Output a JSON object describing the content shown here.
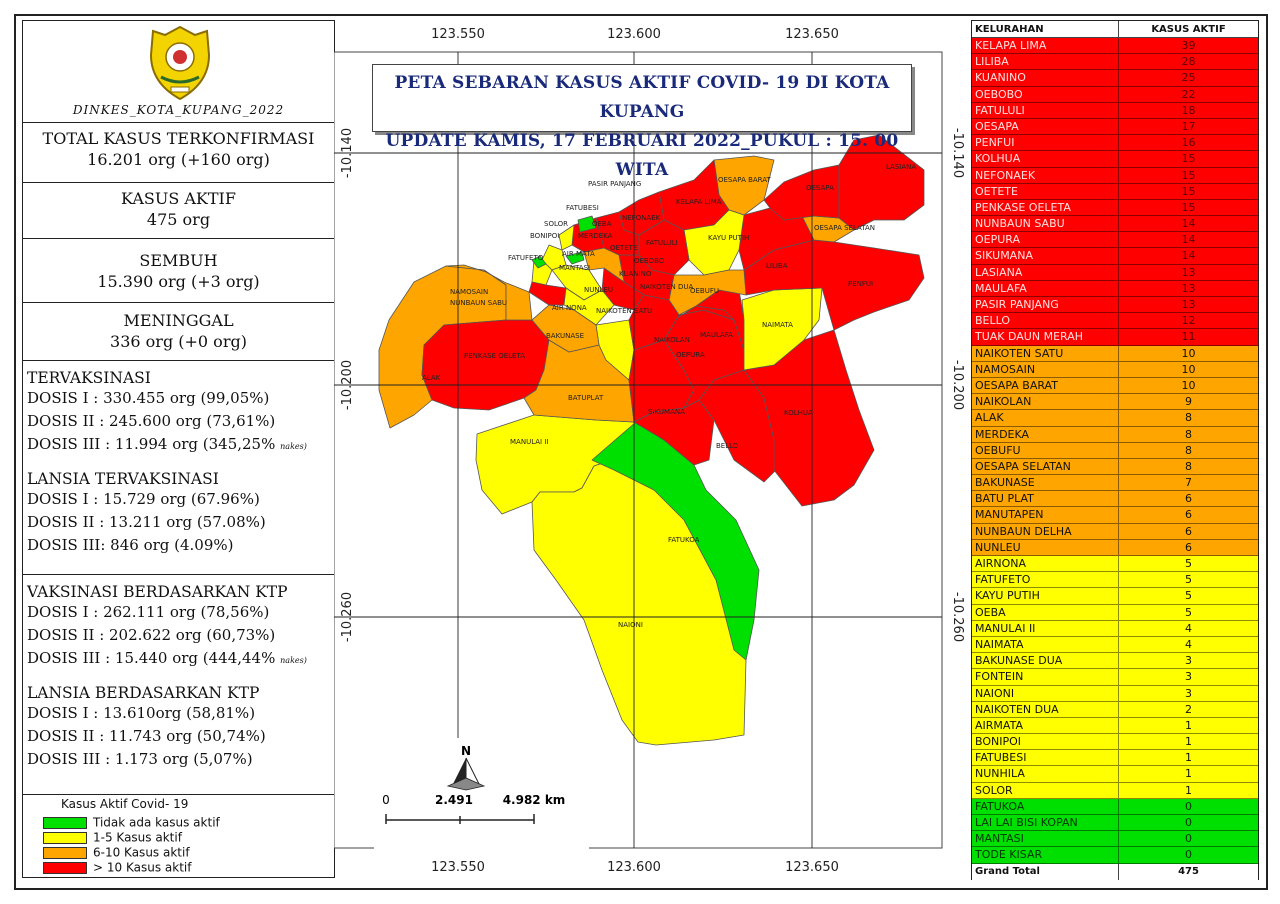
{
  "agency": "DINKES_KOTA_KUPANG_2022",
  "stats": {
    "total": {
      "title": "TOTAL KASUS TERKONFIRMASI",
      "value": "16.201 org (+160 org)"
    },
    "aktif": {
      "title": "KASUS AKTIF",
      "value": "475 org"
    },
    "sembuh": {
      "title": "SEMBUH",
      "value": "15.390 org (+3 org)"
    },
    "meninggal": {
      "title": "MENINGGAL",
      "value": "336 org (+0 org)"
    }
  },
  "tervaksinasi": {
    "title": "TERVAKSINASI",
    "dosis1": "DOSIS I   : 330.455 org (99,05%)",
    "dosis2": "DOSIS II  : 245.600 org (73,61%)",
    "dosis3": "DOSIS III : 11.994 org (345,25%",
    "dosis3_note": "nakes)"
  },
  "lansia": {
    "title": "LANSIA TERVAKSINASI",
    "dosis1": "DOSIS I  : 15.729 org (67.96%)",
    "dosis2": "DOSIS II : 13.211 org (57.08%)",
    "dosis3": "DOSIS III:  846 org  (4.09%)"
  },
  "ktp": {
    "title": "VAKSINASI BERDASARKAN KTP",
    "dosis1": "DOSIS I     : 262.111 org (78,56%)",
    "dosis2": "DOSIS II   : 202.622 org (60,73%)",
    "dosis3": "DOSIS III : 15.440 org (444,44%",
    "dosis3_note": "nakes)"
  },
  "lansia_ktp": {
    "title": "LANSIA BERDASARKAN KTP",
    "dosis1": "DOSIS I     : 13.610org (58,81%)",
    "dosis2": "DOSIS II    : 11.743 org (50,74%)",
    "dosis3": "DOSIS III  : 1.173 org (5,07%)"
  },
  "legend": {
    "title": "Kasus Aktif Covid- 19",
    "items": [
      {
        "label": "Tidak ada kasus aktif",
        "color": "#00e000"
      },
      {
        "label": "1-5 Kasus aktif",
        "color": "#ffff00"
      },
      {
        "label": "6-10 Kasus aktif",
        "color": "#ffa500"
      },
      {
        "label": "> 10 Kasus aktif",
        "color": "#ff0000"
      }
    ]
  },
  "map": {
    "title_line1": "PETA SEBARAN KASUS AKTIF COVID- 19 DI KOTA KUPANG",
    "title_line2": "UPDATE KAMIS, 17 FEBRUARI 2022_PUKUL : 15. 00 WITA",
    "lon_labels": [
      "123.550",
      "123.600",
      "123.650"
    ],
    "lat_labels": [
      "-10.140",
      "-10.200",
      "-10.260"
    ],
    "north": "N",
    "scale": [
      "0",
      "2.491",
      "4.982 km"
    ],
    "place_labels": [
      "LASIANA",
      "OESAPA",
      "OESAPA BARAT",
      "OESAPA SELATAN",
      "PENFUI",
      "LILIBA",
      "KAYU PUTIH",
      "KELAPA LIMA",
      "NEFONAEK",
      "PASIR PANJANG",
      "FATUBESI",
      "OEBA",
      "SOLOR",
      "BONIPOI",
      "MERDEKA",
      "OETETE",
      "FATULULI",
      "AIR MATA",
      "FATUFETO",
      "MANTASI",
      "OEBOBO",
      "KUANINO",
      "NUNLEU",
      "NAIKOTEN DUA",
      "OEBUFU",
      "AIR NONA",
      "NAIKOTEN SATU",
      "NAMOSAIN",
      "NUNBAUN SABU",
      "BAKUNASE",
      "NAIKOLAN",
      "MAULAFA",
      "NAIMATA",
      "OEPURA",
      "PENKASE OELETA",
      "ALAK",
      "BATUPLAT",
      "SIKUMANA",
      "KOLHUA",
      "BELLO",
      "MANULAI II",
      "FATUKOA",
      "NAIONI"
    ]
  },
  "table": {
    "header_k": "KELURAHAN",
    "header_v": "KASUS AKTIF",
    "rows": [
      {
        "name": "KELAPA LIMA",
        "value": "39",
        "cls": "c-red"
      },
      {
        "name": "LILIBA",
        "value": "28",
        "cls": "c-red"
      },
      {
        "name": "KUANINO",
        "value": "25",
        "cls": "c-red"
      },
      {
        "name": "OEBOBO",
        "value": "22",
        "cls": "c-red"
      },
      {
        "name": "FATULULI",
        "value": "18",
        "cls": "c-red"
      },
      {
        "name": "OESAPA",
        "value": "17",
        "cls": "c-red"
      },
      {
        "name": "PENFUI",
        "value": "16",
        "cls": "c-red"
      },
      {
        "name": "KOLHUA",
        "value": "15",
        "cls": "c-red"
      },
      {
        "name": "NEFONAEK",
        "value": "15",
        "cls": "c-red"
      },
      {
        "name": "OETETE",
        "value": "15",
        "cls": "c-red"
      },
      {
        "name": "PENKASE OELETA",
        "value": "15",
        "cls": "c-red"
      },
      {
        "name": "NUNBAUN SABU",
        "value": "14",
        "cls": "c-red"
      },
      {
        "name": "OEPURA",
        "value": "14",
        "cls": "c-red"
      },
      {
        "name": "SIKUMANA",
        "value": "14",
        "cls": "c-red"
      },
      {
        "name": "LASIANA",
        "value": "13",
        "cls": "c-red"
      },
      {
        "name": "MAULAFA",
        "value": "13",
        "cls": "c-red"
      },
      {
        "name": "PASIR PANJANG",
        "value": "13",
        "cls": "c-red"
      },
      {
        "name": "BELLO",
        "value": "12",
        "cls": "c-red"
      },
      {
        "name": "TUAK DAUN MERAH",
        "value": "11",
        "cls": "c-red"
      },
      {
        "name": "NAIKOTEN SATU",
        "value": "10",
        "cls": "c-orange"
      },
      {
        "name": "NAMOSAIN",
        "value": "10",
        "cls": "c-orange"
      },
      {
        "name": "OESAPA BARAT",
        "value": "10",
        "cls": "c-orange"
      },
      {
        "name": "NAIKOLAN",
        "value": "9",
        "cls": "c-orange"
      },
      {
        "name": "ALAK",
        "value": "8",
        "cls": "c-orange"
      },
      {
        "name": "MERDEKA",
        "value": "8",
        "cls": "c-orange"
      },
      {
        "name": "OEBUFU",
        "value": "8",
        "cls": "c-orange"
      },
      {
        "name": "OESAPA SELATAN",
        "value": "8",
        "cls": "c-orange"
      },
      {
        "name": "BAKUNASE",
        "value": "7",
        "cls": "c-orange"
      },
      {
        "name": "BATU PLAT",
        "value": "6",
        "cls": "c-orange"
      },
      {
        "name": "MANUTAPEN",
        "value": "6",
        "cls": "c-orange"
      },
      {
        "name": "NUNBAUN DELHA",
        "value": "6",
        "cls": "c-orange"
      },
      {
        "name": "NUNLEU",
        "value": "6",
        "cls": "c-orange"
      },
      {
        "name": "AIRNONA",
        "value": "5",
        "cls": "c-yellow"
      },
      {
        "name": "FATUFETO",
        "value": "5",
        "cls": "c-yellow"
      },
      {
        "name": "KAYU PUTIH",
        "value": "5",
        "cls": "c-yellow"
      },
      {
        "name": "OEBA",
        "value": "5",
        "cls": "c-yellow"
      },
      {
        "name": "MANULAI II",
        "value": "4",
        "cls": "c-yellow"
      },
      {
        "name": "NAIMATA",
        "value": "4",
        "cls": "c-yellow"
      },
      {
        "name": "BAKUNASE DUA",
        "value": "3",
        "cls": "c-yellow"
      },
      {
        "name": "FONTEIN",
        "value": "3",
        "cls": "c-yellow"
      },
      {
        "name": "NAIONI",
        "value": "3",
        "cls": "c-yellow"
      },
      {
        "name": "NAIKOTEN DUA",
        "value": "2",
        "cls": "c-yellow"
      },
      {
        "name": "AIRMATA",
        "value": "1",
        "cls": "c-yellow"
      },
      {
        "name": "BONIPOI",
        "value": "1",
        "cls": "c-yellow"
      },
      {
        "name": "FATUBESI",
        "value": "1",
        "cls": "c-yellow"
      },
      {
        "name": "NUNHILA",
        "value": "1",
        "cls": "c-yellow"
      },
      {
        "name": "SOLOR",
        "value": "1",
        "cls": "c-yellow"
      },
      {
        "name": "FATUKOA",
        "value": "0",
        "cls": "c-green"
      },
      {
        "name": "LAI LAI BISI KOPAN",
        "value": "0",
        "cls": "c-green"
      },
      {
        "name": "MANTASI",
        "value": "0",
        "cls": "c-green"
      },
      {
        "name": "TODE KISAR",
        "value": "0",
        "cls": "c-green"
      }
    ],
    "total_label": "Grand Total",
    "total_value": "475"
  }
}
